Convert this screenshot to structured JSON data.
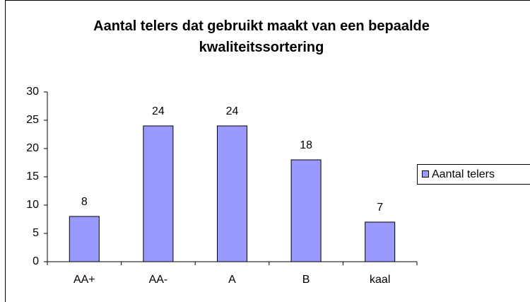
{
  "chart_data": {
    "type": "bar",
    "title": "Aantal telers dat gebruikt maakt van een bepaalde kwaliteitssortering",
    "categories": [
      "AA+",
      "AA-",
      "A",
      "B",
      "kaal"
    ],
    "series": [
      {
        "name": "Aantal telers",
        "color": "#9999ff",
        "values": [
          8,
          24,
          24,
          18,
          7
        ]
      }
    ],
    "ylim": [
      0,
      30
    ],
    "yticks": [
      0,
      5,
      10,
      15,
      20,
      25,
      30
    ],
    "legend": "right"
  }
}
